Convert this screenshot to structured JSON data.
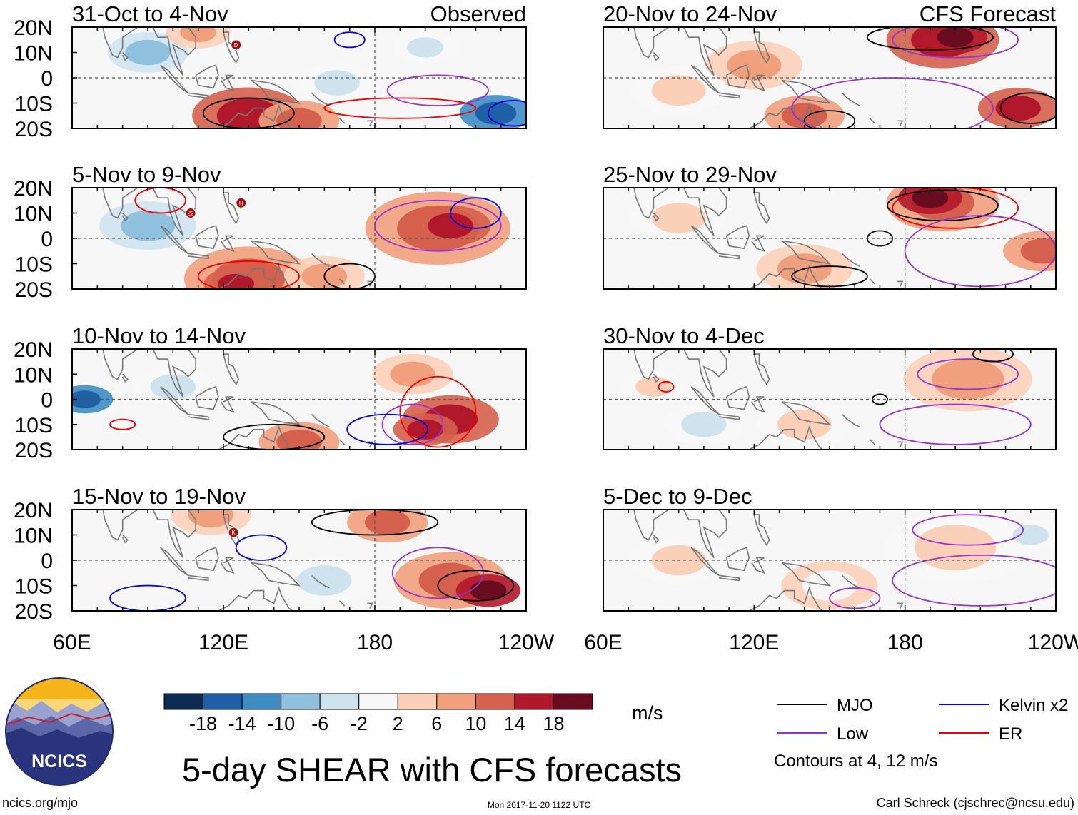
{
  "chart_data": {
    "type": "heatmap",
    "title": "5-day SHEAR with CFS forecasts",
    "units": "m/s",
    "columns": [
      {
        "label": "Observed",
        "panels": [
          "31-Oct to 4-Nov",
          "5-Nov to 9-Nov",
          "10-Nov to 14-Nov",
          "15-Nov to 19-Nov"
        ]
      },
      {
        "label": "CFS Forecast",
        "panels": [
          "20-Nov to 24-Nov",
          "25-Nov to 29-Nov",
          "30-Nov to 4-Dec",
          "5-Dec to 9-Dec"
        ]
      }
    ],
    "y_axis": {
      "ticks": [
        "20N",
        "10N",
        "0",
        "10S",
        "20S"
      ],
      "range": [
        -20,
        20
      ]
    },
    "x_axis": {
      "ticks": [
        "60E",
        "120E",
        "180",
        "120W"
      ],
      "range": [
        60,
        240
      ]
    },
    "colorbar": {
      "tick_labels": [
        "-18",
        "-14",
        "-10",
        "-6",
        "-2",
        "2",
        "6",
        "10",
        "14",
        "18"
      ],
      "colors": [
        "#0d2a52",
        "#1f5fa5",
        "#3f8cc3",
        "#8fc0dd",
        "#cfe3ef",
        "#f7f7f7",
        "#fbd0b9",
        "#f0a07c",
        "#d5604d",
        "#b2182b",
        "#6a0c20"
      ]
    },
    "legend": [
      {
        "label": "MJO",
        "color": "#000000"
      },
      {
        "label": "Kelvin x2",
        "color": "#0000dd"
      },
      {
        "label": "Low",
        "color": "#9932cc"
      },
      {
        "label": "ER",
        "color": "#ee0000"
      }
    ],
    "contour_note": "Contours at 4, 12 m/s",
    "storm_markers": [
      {
        "panel": "31-Oct to 4-Nov",
        "label": "D"
      },
      {
        "panel": "5-Nov to 9-Nov",
        "label": "29"
      },
      {
        "panel": "5-Nov to 9-Nov",
        "label": "H"
      },
      {
        "panel": "15-Nov to 19-Nov",
        "label": "K"
      }
    ]
  },
  "logo_text": "NCICS",
  "footer": {
    "url": "ncics.org/mjo",
    "timestamp": "Mon 2017-11-20 1122 UTC",
    "credit": "Carl Schreck (cjschrec@ncsu.edu)"
  }
}
